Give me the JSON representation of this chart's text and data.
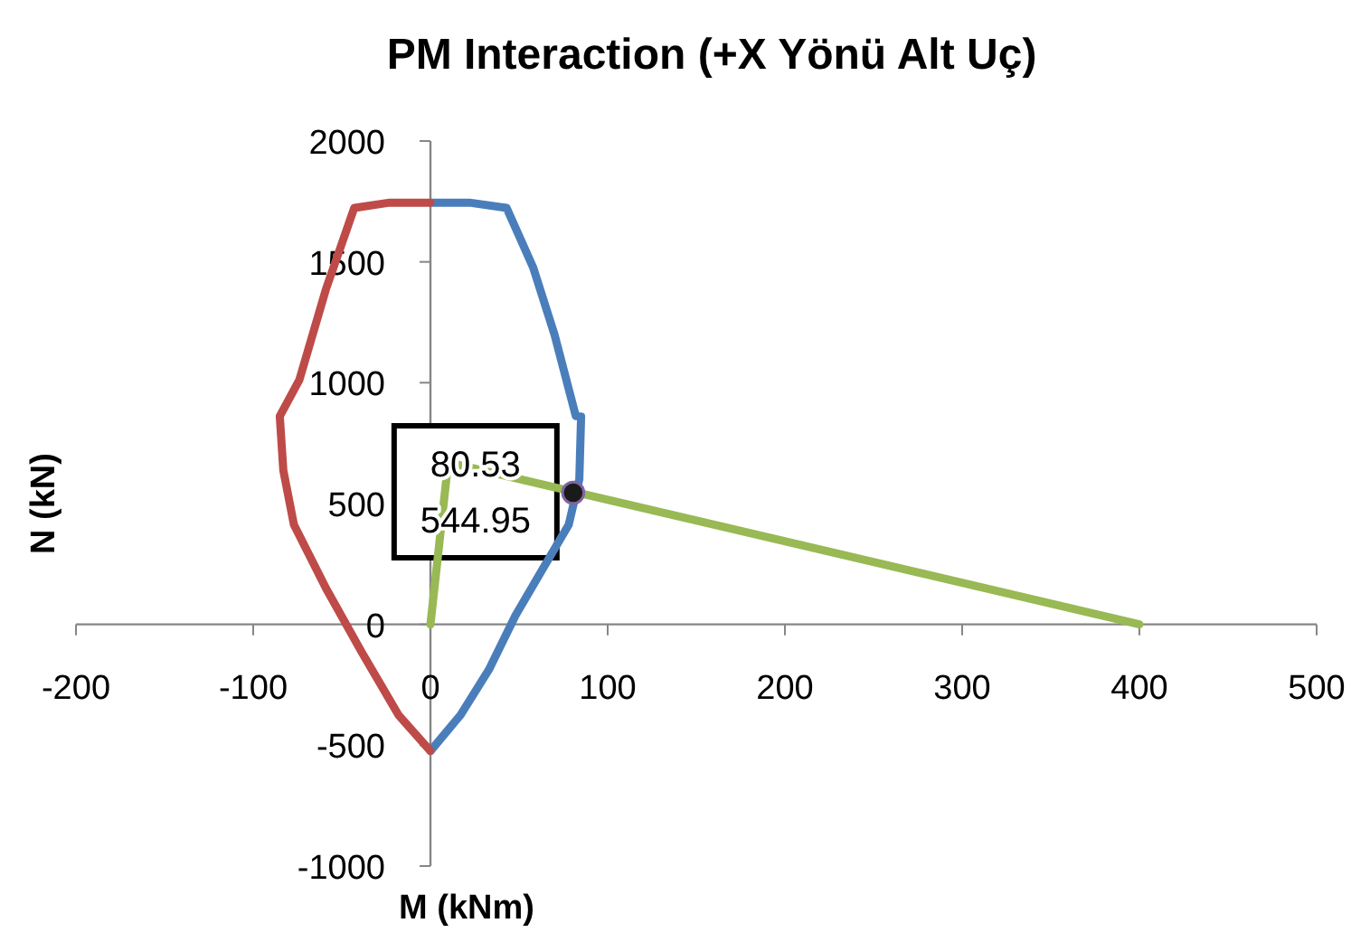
{
  "chart_data": {
    "type": "line",
    "title": "PM Interaction (+X Yönü Alt Uç)",
    "xlabel": "M (kNm)",
    "ylabel": "N (kN)",
    "xlim": [
      -200,
      500
    ],
    "xticks": [
      -200,
      -100,
      0,
      100,
      200,
      300,
      400,
      500
    ],
    "ylim": [
      -1000,
      2000
    ],
    "yticks": [
      -1000,
      -500,
      0,
      500,
      1000,
      1500,
      2000
    ],
    "grid": false,
    "marker": "none",
    "line_style": "solid",
    "series": [
      {
        "color": "#4a7ebb",
        "x": [
          0,
          22,
          43,
          58,
          70,
          82,
          85,
          84,
          78,
          63,
          48,
          33,
          17,
          0
        ],
        "values": [
          1745,
          1745,
          1723,
          1476,
          1199,
          862,
          860,
          600,
          412,
          225,
          37,
          -187,
          -375,
          -524
        ]
      },
      {
        "color": "#be4b48",
        "x": [
          0,
          -23,
          -43,
          -59,
          -74,
          -85,
          -83,
          -77,
          -59,
          -39,
          -18,
          0
        ],
        "values": [
          1745,
          1745,
          1723,
          1386,
          1011,
          861,
          637,
          412,
          150,
          -112,
          -375,
          -524
        ]
      },
      {
        "color": "#98b954",
        "x": [
          0,
          10,
          400
        ],
        "values": [
          0,
          670,
          0
        ]
      },
      {
        "type": "scatter",
        "color": "#1a1a1a",
        "marker": "circle",
        "x": [
          80.53
        ],
        "values": [
          544.95
        ]
      }
    ],
    "annotations": [
      {
        "text": "80.53\n544.95",
        "x": 80.53,
        "y": 544.95
      }
    ]
  }
}
